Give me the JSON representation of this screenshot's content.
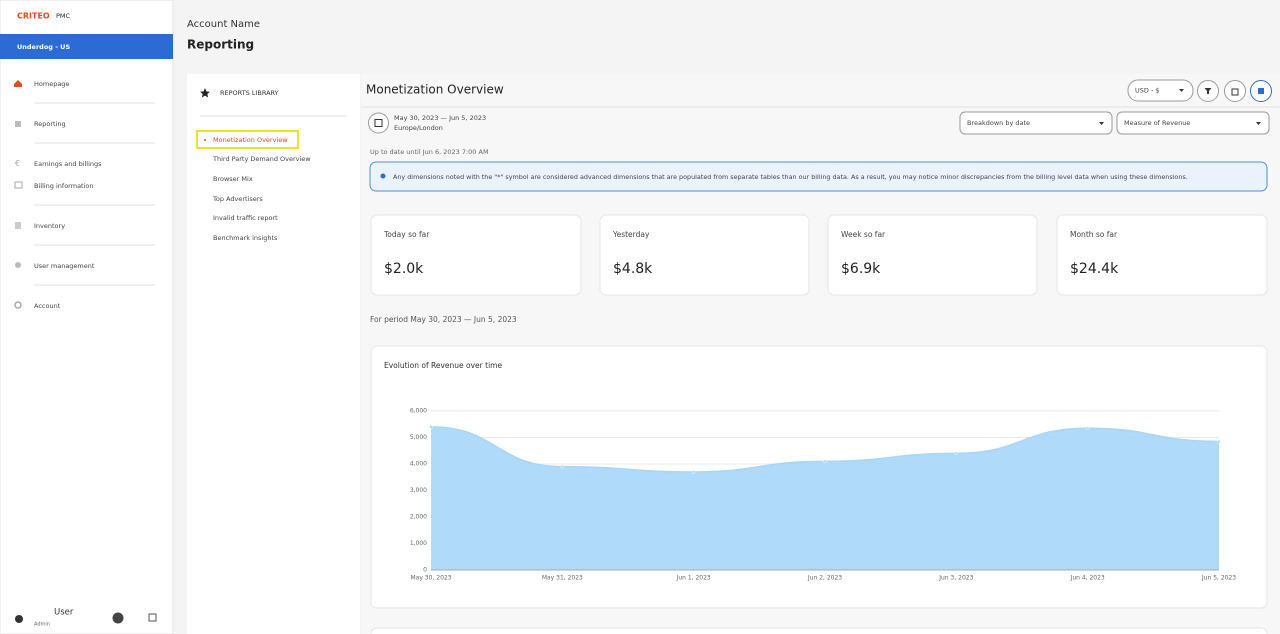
{
  "brand": {
    "logo": "CRITEO",
    "product": "PMC"
  },
  "sidebar": {
    "account": "Underdog - US",
    "items": [
      "Homepage",
      "Reporting",
      "Earnings and billings",
      "Billing information",
      "Inventory",
      "User management",
      "Account"
    ],
    "user": "User",
    "role": "Admin"
  },
  "header": {
    "account": "Account Name",
    "title": "Reporting"
  },
  "library": {
    "title": "REPORTS LIBRARY",
    "items": [
      "Monetization Overview",
      "Third Party Demand Overview",
      "Browser Mix",
      "Top Advertisers",
      "Invalid traffic report",
      "Benchmark insights"
    ]
  },
  "report": {
    "title": "Monetization Overview",
    "currency": "USD - $",
    "date_range": "May 30, 2023 — Jun 5, 2023",
    "timezone": "Europe/London",
    "breakdown": "Breakdown by date",
    "measure": "Measure of Revenue",
    "updated": "Up to date until Jun 6, 2023 7:00 AM",
    "notice": "Any dimensions noted with the \"*\" symbol are considered advanced dimensions that are populated from separate tables than our billing data. As a result, you may notice minor discrepancies from the billing level data when using these dimensions.",
    "kpis": [
      {
        "label": "Today so far",
        "value": "$2.0k"
      },
      {
        "label": "Yesterday",
        "value": "$4.8k"
      },
      {
        "label": "Week so far",
        "value": "$6.9k"
      },
      {
        "label": "Month so far",
        "value": "$24.4k"
      }
    ],
    "period": "For period May 30, 2023 — Jun 5, 2023"
  },
  "chart_data": {
    "type": "area",
    "title": "Evolution of Revenue over time",
    "categories": [
      "May 30, 2023",
      "May 31, 2023",
      "Jun 1, 2023",
      "Jun 2, 2023",
      "Jun 3, 2023",
      "Jun 4, 2023",
      "Jun 5, 2023"
    ],
    "values": [
      5400,
      3900,
      3700,
      4100,
      4400,
      5350,
      4850
    ],
    "color": "#a6d6fa",
    "ylim": [
      0,
      6000
    ],
    "yticks": [
      0,
      {
        "value": 1000,
        "label": "1,000"
      },
      {
        "value": 2000,
        "label": "2,000"
      },
      {
        "value": 3000,
        "label": "3,000"
      },
      {
        "value": 4000,
        "label": "4,000"
      },
      {
        "value": 5000,
        "label": "5,000"
      },
      {
        "value": 6000,
        "label": "6,000"
      }
    ],
    "grid": true
  }
}
